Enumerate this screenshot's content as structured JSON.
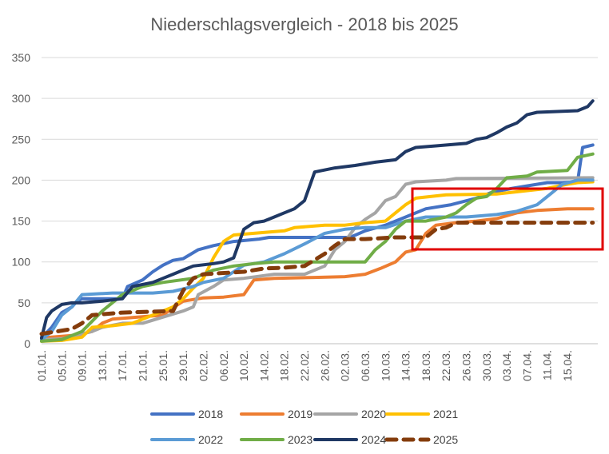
{
  "chart_data": {
    "type": "line",
    "title": "Niederschlagsvergleich - 2018 bis 2025",
    "xlabel": "",
    "ylabel": "",
    "ylim": [
      0,
      350
    ],
    "yticks": [
      0,
      50,
      100,
      150,
      200,
      250,
      300,
      350
    ],
    "grid": true,
    "legend_position": "bottom",
    "x_start": "01.01.",
    "x_step_days": 1,
    "x_tick_labels": [
      "01.01.",
      "05.01.",
      "09.01.",
      "13.01.",
      "17.01.",
      "21.01.",
      "25.01.",
      "29.01.",
      "02.02.",
      "06.02.",
      "10.02.",
      "14.02.",
      "18.02.",
      "22.02.",
      "26.02.",
      "02.03.",
      "06.03.",
      "10.03.",
      "14.03.",
      "18.03.",
      "22.03.",
      "26.03.",
      "30.03.",
      "03.04.",
      "07.04.",
      "11.04.",
      "15.04."
    ],
    "annotation": {
      "type": "highlight-box",
      "color": "#e00000"
    },
    "series": [
      {
        "name": "2018",
        "color": "#4472c4",
        "dash": false,
        "values": [
          [
            0,
            7
          ],
          [
            2,
            20
          ],
          [
            4,
            38
          ],
          [
            6,
            45
          ],
          [
            7,
            52
          ],
          [
            8,
            55
          ],
          [
            16,
            55
          ],
          [
            17,
            70
          ],
          [
            20,
            78
          ],
          [
            22,
            88
          ],
          [
            24,
            96
          ],
          [
            26,
            102
          ],
          [
            28,
            104
          ],
          [
            31,
            115
          ],
          [
            34,
            120
          ],
          [
            38,
            125
          ],
          [
            43,
            128
          ],
          [
            45,
            130
          ],
          [
            61,
            130
          ],
          [
            64,
            138
          ],
          [
            68,
            145
          ],
          [
            70,
            150
          ],
          [
            72,
            155
          ],
          [
            76,
            165
          ],
          [
            81,
            170
          ],
          [
            86,
            178
          ],
          [
            89,
            185
          ],
          [
            93,
            190
          ],
          [
            96,
            193
          ],
          [
            100,
            197
          ],
          [
            103,
            197
          ],
          [
            106,
            198
          ],
          [
            107,
            240
          ],
          [
            109,
            243
          ]
        ]
      },
      {
        "name": "2019",
        "color": "#ed7d31",
        "dash": false,
        "values": [
          [
            0,
            7
          ],
          [
            6,
            10
          ],
          [
            8,
            12
          ],
          [
            10,
            15
          ],
          [
            12,
            25
          ],
          [
            14,
            30
          ],
          [
            20,
            33
          ],
          [
            24,
            35
          ],
          [
            26,
            44
          ],
          [
            28,
            52
          ],
          [
            32,
            56
          ],
          [
            36,
            57
          ],
          [
            40,
            60
          ],
          [
            42,
            78
          ],
          [
            46,
            80
          ],
          [
            54,
            81
          ],
          [
            60,
            82
          ],
          [
            64,
            85
          ],
          [
            67,
            92
          ],
          [
            70,
            100
          ],
          [
            72,
            112
          ],
          [
            74,
            115
          ],
          [
            76,
            135
          ],
          [
            78,
            145
          ],
          [
            82,
            148
          ],
          [
            86,
            150
          ],
          [
            90,
            153
          ],
          [
            94,
            160
          ],
          [
            98,
            163
          ],
          [
            104,
            165
          ],
          [
            109,
            165
          ]
        ]
      },
      {
        "name": "2020",
        "color": "#a5a5a5",
        "dash": false,
        "values": [
          [
            0,
            5
          ],
          [
            4,
            6
          ],
          [
            6,
            8
          ],
          [
            8,
            12
          ],
          [
            10,
            15
          ],
          [
            12,
            20
          ],
          [
            16,
            25
          ],
          [
            20,
            25
          ],
          [
            28,
            40
          ],
          [
            30,
            45
          ],
          [
            31,
            60
          ],
          [
            34,
            70
          ],
          [
            36,
            78
          ],
          [
            40,
            80
          ],
          [
            46,
            85
          ],
          [
            52,
            85
          ],
          [
            56,
            95
          ],
          [
            58,
            115
          ],
          [
            60,
            125
          ],
          [
            62,
            142
          ],
          [
            64,
            152
          ],
          [
            66,
            160
          ],
          [
            68,
            175
          ],
          [
            70,
            180
          ],
          [
            72,
            195
          ],
          [
            74,
            198
          ],
          [
            80,
            200
          ],
          [
            82,
            202
          ],
          [
            109,
            203
          ]
        ]
      },
      {
        "name": "2021",
        "color": "#ffc000",
        "dash": false,
        "values": [
          [
            0,
            3
          ],
          [
            4,
            4
          ],
          [
            6,
            6
          ],
          [
            8,
            8
          ],
          [
            10,
            20
          ],
          [
            14,
            22
          ],
          [
            18,
            25
          ],
          [
            22,
            35
          ],
          [
            24,
            40
          ],
          [
            26,
            45
          ],
          [
            28,
            55
          ],
          [
            30,
            68
          ],
          [
            32,
            80
          ],
          [
            34,
            105
          ],
          [
            36,
            125
          ],
          [
            38,
            133
          ],
          [
            42,
            135
          ],
          [
            48,
            138
          ],
          [
            50,
            142
          ],
          [
            56,
            145
          ],
          [
            60,
            145
          ],
          [
            64,
            148
          ],
          [
            68,
            150
          ],
          [
            70,
            160
          ],
          [
            72,
            170
          ],
          [
            74,
            178
          ],
          [
            80,
            182
          ],
          [
            90,
            183
          ],
          [
            100,
            190
          ],
          [
            104,
            195
          ],
          [
            106,
            197
          ],
          [
            109,
            198
          ]
        ]
      },
      {
        "name": "2022",
        "color": "#5b9bd5",
        "dash": false,
        "values": [
          [
            0,
            5
          ],
          [
            2,
            15
          ],
          [
            4,
            35
          ],
          [
            6,
            45
          ],
          [
            8,
            60
          ],
          [
            14,
            62
          ],
          [
            22,
            62
          ],
          [
            26,
            64
          ],
          [
            30,
            70
          ],
          [
            32,
            75
          ],
          [
            36,
            80
          ],
          [
            40,
            96
          ],
          [
            44,
            100
          ],
          [
            48,
            110
          ],
          [
            52,
            122
          ],
          [
            56,
            135
          ],
          [
            60,
            140
          ],
          [
            64,
            142
          ],
          [
            68,
            142
          ],
          [
            72,
            150
          ],
          [
            76,
            155
          ],
          [
            84,
            155
          ],
          [
            90,
            158
          ],
          [
            94,
            162
          ],
          [
            98,
            170
          ],
          [
            101,
            185
          ],
          [
            103,
            195
          ],
          [
            106,
            200
          ],
          [
            109,
            200
          ]
        ]
      },
      {
        "name": "2023",
        "color": "#70ad47",
        "dash": false,
        "values": [
          [
            0,
            3
          ],
          [
            4,
            5
          ],
          [
            8,
            15
          ],
          [
            12,
            40
          ],
          [
            16,
            60
          ],
          [
            20,
            70
          ],
          [
            24,
            75
          ],
          [
            30,
            80
          ],
          [
            34,
            90
          ],
          [
            38,
            95
          ],
          [
            42,
            98
          ],
          [
            46,
            100
          ],
          [
            52,
            100
          ],
          [
            56,
            100
          ],
          [
            60,
            100
          ],
          [
            64,
            100
          ],
          [
            66,
            115
          ],
          [
            68,
            125
          ],
          [
            70,
            140
          ],
          [
            72,
            150
          ],
          [
            76,
            150
          ],
          [
            80,
            155
          ],
          [
            82,
            160
          ],
          [
            84,
            170
          ],
          [
            86,
            178
          ],
          [
            88,
            180
          ],
          [
            90,
            190
          ],
          [
            92,
            203
          ],
          [
            96,
            205
          ],
          [
            98,
            210
          ],
          [
            104,
            212
          ],
          [
            106,
            228
          ],
          [
            109,
            232
          ]
        ]
      },
      {
        "name": "2024",
        "color": "#1f3864",
        "dash": false,
        "values": [
          [
            0,
            7
          ],
          [
            1,
            32
          ],
          [
            2,
            40
          ],
          [
            4,
            48
          ],
          [
            6,
            50
          ],
          [
            8,
            50
          ],
          [
            12,
            52
          ],
          [
            16,
            55
          ],
          [
            18,
            70
          ],
          [
            22,
            75
          ],
          [
            24,
            80
          ],
          [
            26,
            85
          ],
          [
            28,
            90
          ],
          [
            30,
            95
          ],
          [
            34,
            98
          ],
          [
            36,
            100
          ],
          [
            38,
            105
          ],
          [
            40,
            140
          ],
          [
            42,
            148
          ],
          [
            44,
            150
          ],
          [
            46,
            155
          ],
          [
            48,
            160
          ],
          [
            50,
            165
          ],
          [
            52,
            175
          ],
          [
            54,
            210
          ],
          [
            58,
            215
          ],
          [
            62,
            218
          ],
          [
            66,
            222
          ],
          [
            70,
            225
          ],
          [
            72,
            235
          ],
          [
            74,
            240
          ],
          [
            78,
            242
          ],
          [
            82,
            244
          ],
          [
            84,
            245
          ],
          [
            86,
            250
          ],
          [
            88,
            252
          ],
          [
            90,
            258
          ],
          [
            92,
            265
          ],
          [
            94,
            270
          ],
          [
            96,
            280
          ],
          [
            98,
            283
          ],
          [
            106,
            285
          ],
          [
            108,
            290
          ],
          [
            109,
            297
          ]
        ]
      },
      {
        "name": "2025",
        "color": "#843c0c",
        "dash": true,
        "values": [
          [
            0,
            12
          ],
          [
            6,
            18
          ],
          [
            8,
            25
          ],
          [
            10,
            35
          ],
          [
            16,
            38
          ],
          [
            26,
            40
          ],
          [
            28,
            65
          ],
          [
            30,
            80
          ],
          [
            32,
            85
          ],
          [
            40,
            88
          ],
          [
            44,
            92
          ],
          [
            48,
            93
          ],
          [
            52,
            95
          ],
          [
            56,
            110
          ],
          [
            58,
            120
          ],
          [
            60,
            128
          ],
          [
            64,
            128
          ],
          [
            70,
            130
          ],
          [
            72,
            130
          ],
          [
            76,
            130
          ],
          [
            78,
            140
          ],
          [
            80,
            142
          ],
          [
            82,
            148
          ],
          [
            86,
            148
          ],
          [
            109,
            148
          ]
        ]
      }
    ]
  }
}
